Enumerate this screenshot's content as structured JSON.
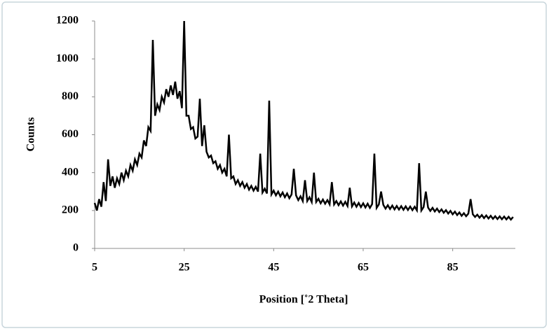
{
  "chart_data": {
    "type": "line",
    "xlabel": "Position [˚2 Theta]",
    "ylabel": "Counts",
    "xlim": [
      5,
      99
    ],
    "ylim": [
      0,
      1200
    ],
    "xticks": [
      5,
      25,
      45,
      65,
      85
    ],
    "yticks": [
      0,
      200,
      400,
      600,
      800,
      1000,
      1200
    ],
    "grid": false,
    "x": [
      5,
      5.5,
      6,
      6.5,
      7,
      7.5,
      8,
      8.5,
      9,
      9.5,
      10,
      10.5,
      11,
      11.5,
      12,
      12.5,
      13,
      13.5,
      14,
      14.5,
      15,
      15.5,
      16,
      16.5,
      17,
      17.5,
      18,
      18.5,
      19,
      19.5,
      20,
      20.5,
      21,
      21.5,
      22,
      22.5,
      23,
      23.5,
      24,
      24.5,
      25,
      25.5,
      26,
      26.5,
      27,
      27.5,
      28,
      28.5,
      29,
      29.5,
      30,
      30.5,
      31,
      31.5,
      32,
      32.5,
      33,
      33.5,
      34,
      34.5,
      35,
      35.5,
      36,
      36.5,
      37,
      37.5,
      38,
      38.5,
      39,
      39.5,
      40,
      40.5,
      41,
      41.5,
      42,
      42.5,
      43,
      43.5,
      44,
      44.5,
      45,
      45.5,
      46,
      46.5,
      47,
      47.5,
      48,
      48.5,
      49,
      49.5,
      50,
      50.5,
      51,
      51.5,
      52,
      52.5,
      53,
      53.5,
      54,
      54.5,
      55,
      55.5,
      56,
      56.5,
      57,
      57.5,
      58,
      58.5,
      59,
      59.5,
      60,
      60.5,
      61,
      61.5,
      62,
      62.5,
      63,
      63.5,
      64,
      64.5,
      65,
      65.5,
      66,
      66.5,
      67,
      67.5,
      68,
      68.5,
      69,
      69.5,
      70,
      70.5,
      71,
      71.5,
      72,
      72.5,
      73,
      73.5,
      74,
      74.5,
      75,
      75.5,
      76,
      76.5,
      77,
      77.5,
      78,
      78.5,
      79,
      79.5,
      80,
      80.5,
      81,
      81.5,
      82,
      82.5,
      83,
      83.5,
      84,
      84.5,
      85,
      85.5,
      86,
      86.5,
      87,
      87.5,
      88,
      88.5,
      89,
      89.5,
      90,
      90.5,
      91,
      91.5,
      92,
      92.5,
      93,
      93.5,
      94,
      94.5,
      95,
      95.5,
      96,
      96.5,
      97,
      97.5,
      98,
      98.5
    ],
    "series": [
      {
        "color": "#000000",
        "values": [
          240,
          200,
          260,
          220,
          350,
          250,
          470,
          330,
          380,
          320,
          370,
          340,
          400,
          360,
          410,
          380,
          440,
          410,
          470,
          440,
          500,
          480,
          570,
          540,
          640,
          620,
          1100,
          700,
          760,
          730,
          800,
          770,
          840,
          800,
          860,
          810,
          880,
          790,
          830,
          740,
          1200,
          700,
          700,
          630,
          640,
          580,
          590,
          790,
          540,
          650,
          510,
          480,
          490,
          450,
          460,
          420,
          440,
          400,
          420,
          380,
          600,
          370,
          380,
          340,
          360,
          330,
          350,
          320,
          340,
          310,
          330,
          305,
          325,
          300,
          500,
          295,
          315,
          290,
          780,
          285,
          305,
          280,
          300,
          275,
          295,
          270,
          290,
          265,
          285,
          420,
          280,
          255,
          275,
          250,
          360,
          250,
          270,
          245,
          400,
          245,
          262,
          238,
          258,
          236,
          255,
          233,
          350,
          232,
          250,
          228,
          248,
          226,
          246,
          224,
          320,
          222,
          242,
          220,
          240,
          218,
          238,
          216,
          236,
          214,
          234,
          500,
          214,
          232,
          300,
          230,
          210,
          228,
          208,
          226,
          206,
          224,
          205,
          223,
          204,
          222,
          203,
          221,
          202,
          220,
          201,
          450,
          200,
          218,
          300,
          216,
          198,
          214,
          195,
          210,
          192,
          206,
          188,
          202,
          184,
          198,
          180,
          194,
          176,
          190,
          172,
          186,
          170,
          184,
          260,
          180,
          166,
          178,
          162,
          176,
          160,
          174,
          158,
          172,
          156,
          170,
          155,
          169,
          154,
          168,
          153,
          167,
          152,
          166
        ]
      }
    ]
  }
}
